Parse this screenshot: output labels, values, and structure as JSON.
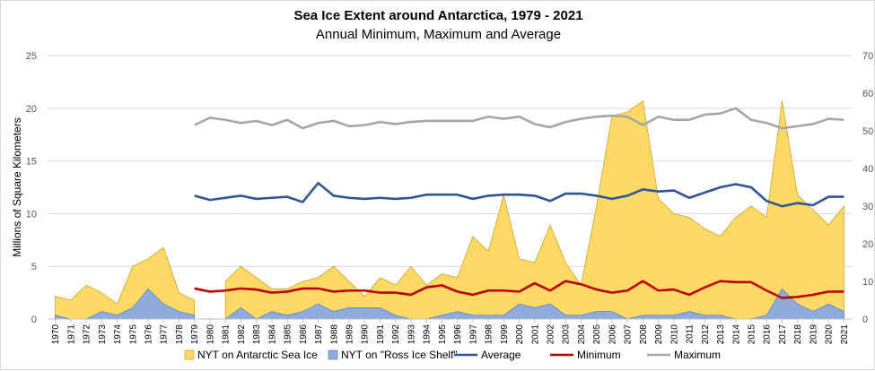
{
  "chart_data": {
    "type": "area",
    "title": "Sea Ice Extent around Antarctica, 1979 - 2021",
    "subtitle": "Annual Minimum, Maximum and Average",
    "ylabel": "Millions of Square Kilometers",
    "ylim": [
      0,
      25
    ],
    "yticks": [
      "0",
      "5",
      "10",
      "15",
      "20",
      "25"
    ],
    "y2lim": [
      0,
      70
    ],
    "y2ticks": [
      "0",
      "10",
      "20",
      "30",
      "40",
      "50",
      "60",
      "70"
    ],
    "grid": true,
    "legend_position": "bottom",
    "x": [
      1970,
      1971,
      1972,
      1973,
      1974,
      1975,
      1976,
      1977,
      1978,
      1979,
      1980,
      1981,
      1982,
      1983,
      1984,
      1985,
      1986,
      1987,
      1988,
      1989,
      1990,
      1991,
      1992,
      1993,
      1994,
      1995,
      1996,
      1997,
      1998,
      1999,
      2000,
      2001,
      2002,
      2003,
      2004,
      2005,
      2006,
      2007,
      2008,
      2009,
      2010,
      2011,
      2012,
      2013,
      2014,
      2015,
      2016,
      2017,
      2018,
      2019,
      2020,
      2021
    ],
    "series": [
      {
        "name": "NYT on Antarctic Sea Ice",
        "kind": "area",
        "axis": "right",
        "color": "#FFD966",
        "values": [
          6,
          5,
          9,
          7,
          4,
          14,
          16,
          19,
          7,
          5,
          null,
          10,
          14,
          11,
          8,
          8,
          10,
          11,
          14,
          10,
          6,
          11,
          9,
          14,
          9,
          12,
          11,
          22,
          18,
          33,
          16,
          15,
          25,
          15,
          9,
          30,
          54,
          55,
          58,
          32,
          28,
          27,
          24,
          22,
          27,
          30,
          27,
          58,
          33,
          29,
          25,
          30
        ]
      },
      {
        "name": "NYT on \"Ross Ice Shelf\"",
        "kind": "area",
        "axis": "right",
        "color": "#8FAADC",
        "values": [
          1,
          0,
          0,
          2,
          1,
          3,
          8,
          4,
          2,
          1,
          null,
          0,
          3,
          0,
          2,
          1,
          2,
          4,
          2,
          3,
          3,
          3,
          1,
          0,
          0,
          1,
          2,
          1,
          1,
          1,
          4,
          3,
          4,
          1,
          1,
          2,
          2,
          0,
          1,
          1,
          1,
          2,
          1,
          1,
          0,
          0,
          1,
          8,
          4,
          2,
          4,
          2
        ]
      },
      {
        "name": "Average",
        "kind": "line",
        "axis": "left",
        "color": "#2F5597",
        "values": [
          null,
          null,
          null,
          null,
          null,
          null,
          null,
          null,
          null,
          11.7,
          11.3,
          11.5,
          11.7,
          11.4,
          11.5,
          11.6,
          11.1,
          12.9,
          11.7,
          11.5,
          11.4,
          11.5,
          11.4,
          11.5,
          11.8,
          11.8,
          11.8,
          11.4,
          11.7,
          11.8,
          11.8,
          11.7,
          11.2,
          11.9,
          11.9,
          11.7,
          11.4,
          11.7,
          12.3,
          12.1,
          12.2,
          11.5,
          12.0,
          12.5,
          12.8,
          12.5,
          11.2,
          10.7,
          11.0,
          10.8,
          11.6,
          11.6
        ]
      },
      {
        "name": "Minimum",
        "kind": "line",
        "axis": "left",
        "color": "#C00000",
        "values": [
          null,
          null,
          null,
          null,
          null,
          null,
          null,
          null,
          null,
          2.9,
          2.6,
          2.7,
          2.9,
          2.8,
          2.5,
          2.6,
          2.9,
          2.9,
          2.6,
          2.7,
          2.7,
          2.5,
          2.5,
          2.3,
          3.0,
          3.2,
          2.6,
          2.3,
          2.7,
          2.7,
          2.6,
          3.4,
          2.7,
          3.6,
          3.3,
          2.8,
          2.5,
          2.7,
          3.6,
          2.7,
          2.8,
          2.3,
          3.0,
          3.6,
          3.5,
          3.5,
          2.7,
          2.0,
          2.1,
          2.3,
          2.6,
          2.6
        ]
      },
      {
        "name": "Maximum",
        "kind": "line",
        "axis": "left",
        "color": "#A6A6A6",
        "values": [
          null,
          null,
          null,
          null,
          null,
          null,
          null,
          null,
          null,
          18.4,
          19.1,
          18.9,
          18.6,
          18.8,
          18.4,
          18.9,
          18.1,
          18.6,
          18.8,
          18.3,
          18.4,
          18.7,
          18.5,
          18.7,
          18.8,
          18.8,
          18.8,
          18.8,
          19.2,
          19.0,
          19.2,
          18.5,
          18.2,
          18.7,
          19.0,
          19.2,
          19.3,
          19.2,
          18.4,
          19.2,
          18.9,
          18.9,
          19.4,
          19.5,
          20.0,
          18.9,
          18.6,
          18.1,
          18.3,
          18.5,
          19.0,
          18.9
        ]
      }
    ]
  }
}
